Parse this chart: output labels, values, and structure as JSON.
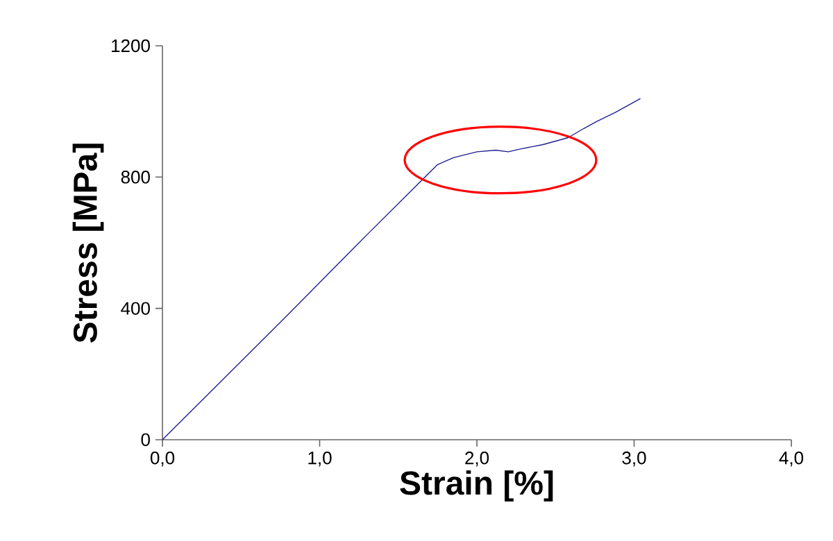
{
  "chart_data": {
    "type": "line",
    "xlabel": "Strain [%]",
    "ylabel": "Stress [MPa]",
    "xlim": [
      0,
      4
    ],
    "ylim": [
      0,
      1200
    ],
    "xticks": [
      {
        "value": 0,
        "label": "0,0"
      },
      {
        "value": 1,
        "label": "1,0"
      },
      {
        "value": 2,
        "label": "2,0"
      },
      {
        "value": 3,
        "label": "3,0"
      },
      {
        "value": 4,
        "label": "4,0"
      }
    ],
    "yticks": [
      0,
      400,
      800,
      1200
    ],
    "grid": false,
    "marker": "none",
    "line_style": "solid",
    "series": [
      {
        "color": "#1f1f8f",
        "x": [
          0,
          0.79,
          1.3,
          1.64,
          1.75,
          1.85,
          2.0,
          2.12,
          2.2,
          2.27,
          2.42,
          2.58,
          2.68,
          2.76,
          2.88,
          3.04
        ],
        "values": [
          0,
          377,
          624,
          786,
          838,
          859,
          877,
          882,
          877,
          885,
          899,
          920,
          948,
          969,
          997,
          1039
        ]
      }
    ]
  }
}
